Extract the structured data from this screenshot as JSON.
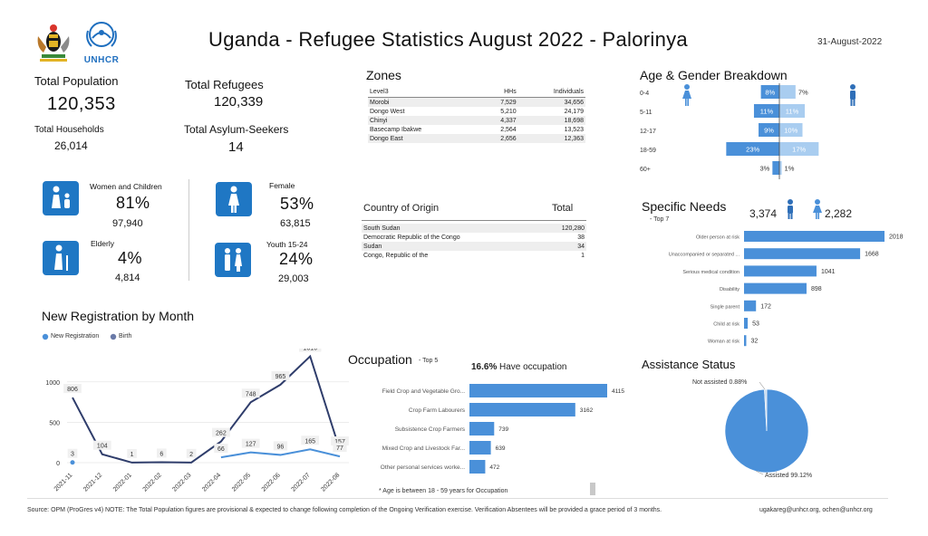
{
  "header": {
    "title": "Uganda - Refugee Statistics August 2022 - Palorinya",
    "date": "31-August-2022",
    "logo_un_text": "UNHCR"
  },
  "kpis": {
    "total_population_label": "Total Population",
    "total_population": "120,353",
    "total_refugees_label": "Total Refugees",
    "total_refugees": "120,339",
    "total_households_label": "Total Households",
    "total_households": "26,014",
    "total_asylum_label": "Total Asylum-Seekers",
    "total_asylum": "14"
  },
  "groups": {
    "women_children_label": "Women and Children",
    "women_children_pct": "81%",
    "women_children_count": "97,940",
    "elderly_label": "Elderly",
    "elderly_pct": "4%",
    "elderly_count": "4,814",
    "female_label": "Female",
    "female_pct": "53%",
    "female_count": "63,815",
    "youth_label": "Youth 15-24",
    "youth_pct": "24%",
    "youth_count": "29,003"
  },
  "zones": {
    "title": "Zones",
    "headers": [
      "Level3",
      "HHs",
      "Individuals"
    ],
    "rows": [
      [
        "Morobi",
        "7,529",
        "34,656"
      ],
      [
        "Dongo West",
        "5,210",
        "24,179"
      ],
      [
        "Chinyi",
        "4,337",
        "18,698"
      ],
      [
        "Basecamp Ibakwe",
        "2,564",
        "13,523"
      ],
      [
        "Dongo East",
        "2,656",
        "12,363"
      ]
    ]
  },
  "origin": {
    "title": "Country of Origin",
    "total_label": "Total",
    "rows": [
      [
        "South Sudan",
        "120,280"
      ],
      [
        "Democratic Republic of the Congo",
        "38"
      ],
      [
        "Sudan",
        "34"
      ],
      [
        "Congo, Republic of the",
        "1"
      ]
    ]
  },
  "footer": {
    "note": "Source: OPM (ProGres v4)   NOTE: The Total Population figures are provisional & expected to change following completion of the Ongoing Verification exercise. Verification Absentees will be provided a grace period of 3 months.",
    "contact": "ugakareg@unhcr.org, ochen@unhcr.org"
  },
  "chart_data": [
    {
      "type": "bar",
      "title": "Age & Gender Breakdown",
      "orientation": "horizontal-diverging",
      "categories": [
        "0-4",
        "5-11",
        "12-17",
        "18-59",
        "60+"
      ],
      "series": [
        {
          "name": "",
          "values": [
            8,
            11,
            9,
            23,
            3
          ],
          "labels": [
            "8%",
            "11%",
            "9%",
            "23%",
            "3%"
          ],
          "color": "#4a90d9"
        },
        {
          "name": "",
          "values": [
            7,
            11,
            10,
            17,
            1
          ],
          "labels": [
            "7%",
            "11%",
            "10%",
            "17%",
            "1%"
          ],
          "color": "#a9cdf0"
        }
      ]
    },
    {
      "type": "bar",
      "title": "Specific Needs",
      "subtitle": "- Top 7",
      "male_count": "3,374",
      "female_count": "2,282",
      "categories": [
        "Older person at risk",
        "Unaccompanied or separated ...",
        "Serious medical condition",
        "Disability",
        "Single parent",
        "Child at risk",
        "Woman at risk"
      ],
      "values": [
        2018,
        1668,
        1041,
        898,
        172,
        53,
        32
      ],
      "labels": [
        "2018",
        "1668",
        "1041",
        "898",
        "172",
        "53",
        "32"
      ],
      "color": "#4a90d9"
    },
    {
      "type": "line",
      "title": "New Registration by Month",
      "x": [
        "2021-11",
        "2021-12",
        "2022-01",
        "2022-02",
        "2022-03",
        "2022-04",
        "2022-05",
        "2022-06",
        "2022-07",
        "2022-08"
      ],
      "ylim": [
        0,
        1300
      ],
      "yticks": [
        "0",
        "500",
        "1000"
      ],
      "series": [
        {
          "name": "New Registration",
          "values": [
            806,
            104,
            1,
            6,
            2,
            262,
            748,
            965,
            1316,
            157
          ],
          "labels": [
            "806",
            "104",
            "1",
            "6",
            "2",
            "262",
            "748",
            "965",
            "1316",
            "157"
          ],
          "color": "#2f3d6b"
        },
        {
          "name": "Birth",
          "values": [
            3,
            null,
            null,
            null,
            null,
            66,
            127,
            96,
            165,
            77
          ],
          "labels": [
            "3",
            "",
            "",
            "",
            "",
            "66",
            "127",
            "96",
            "165",
            "77"
          ],
          "color": "#4a90d9"
        }
      ]
    },
    {
      "type": "bar",
      "title": "Occupation",
      "subtitle": "- Top 5",
      "headline_pct": "16.6%",
      "headline_text": "Have occupation",
      "footnote": "* Age is between 18 - 59 years for Occupation",
      "categories": [
        "Field Crop and Vegetable Gro...",
        "Crop Farm Labourers",
        "Subsistence Crop Farmers",
        "Mixed Crop and Livestock Far...",
        "Other personal services worke..."
      ],
      "values": [
        4115,
        3162,
        739,
        639,
        472
      ],
      "labels": [
        "4115",
        "3162",
        "739",
        "639",
        "472"
      ],
      "color": "#4a90d9"
    },
    {
      "type": "pie",
      "title": "Assistance Status",
      "slices": [
        {
          "label": "Assisted",
          "value": 99.12,
          "text": "Assisted  99.12%",
          "color": "#4a90d9"
        },
        {
          "label": "Not assisted",
          "value": 0.88,
          "text": "Not assisted  0.88%",
          "color": "#c9dcef"
        }
      ]
    }
  ]
}
